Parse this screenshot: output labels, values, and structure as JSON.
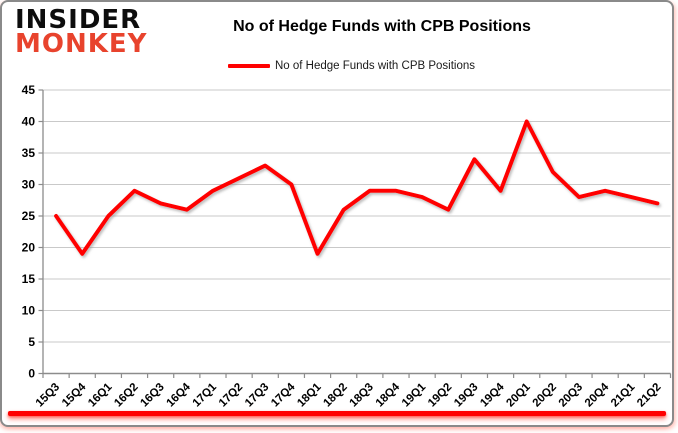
{
  "logo": {
    "line1": "INSIDER",
    "line2": "MONKEY",
    "line1_color": "#0d0d0d",
    "line2_color": "#e8432d"
  },
  "title": "No of Hedge Funds with CPB Positions",
  "legend": {
    "label": "No of Hedge Funds with CPB Positions",
    "line_color": "#ff0000"
  },
  "colors": {
    "series_line": "#ff0000",
    "gridline": "#c9c9c9",
    "axis": "#8c8c8c",
    "label_text": "#000000",
    "accent_bar": "#ff0000",
    "background": "#ffffff"
  },
  "chart_data": {
    "type": "line",
    "title": "No of Hedge Funds with CPB Positions",
    "xlabel": "",
    "ylabel": "",
    "categories": [
      "15Q3",
      "15Q4",
      "16Q1",
      "16Q2",
      "16Q3",
      "16Q4",
      "17Q1",
      "17Q2",
      "17Q3",
      "17Q4",
      "18Q1",
      "18Q2",
      "18Q3",
      "18Q4",
      "19Q1",
      "19Q2",
      "19Q3",
      "19Q4",
      "20Q1",
      "20Q2",
      "20Q3",
      "20Q4",
      "21Q1",
      "21Q2"
    ],
    "series": [
      {
        "name": "No of Hedge Funds with CPB Positions",
        "color": "#ff0000",
        "values": [
          25,
          19,
          25,
          29,
          27,
          26,
          29,
          31,
          33,
          30,
          19,
          26,
          29,
          29,
          28,
          26,
          34,
          29,
          40,
          32,
          28,
          29,
          28,
          27
        ]
      }
    ],
    "ylim": [
      0,
      45
    ],
    "ytick_step": 5,
    "grid": true,
    "legend_position": "top",
    "markers": "none",
    "line_width": 4
  }
}
